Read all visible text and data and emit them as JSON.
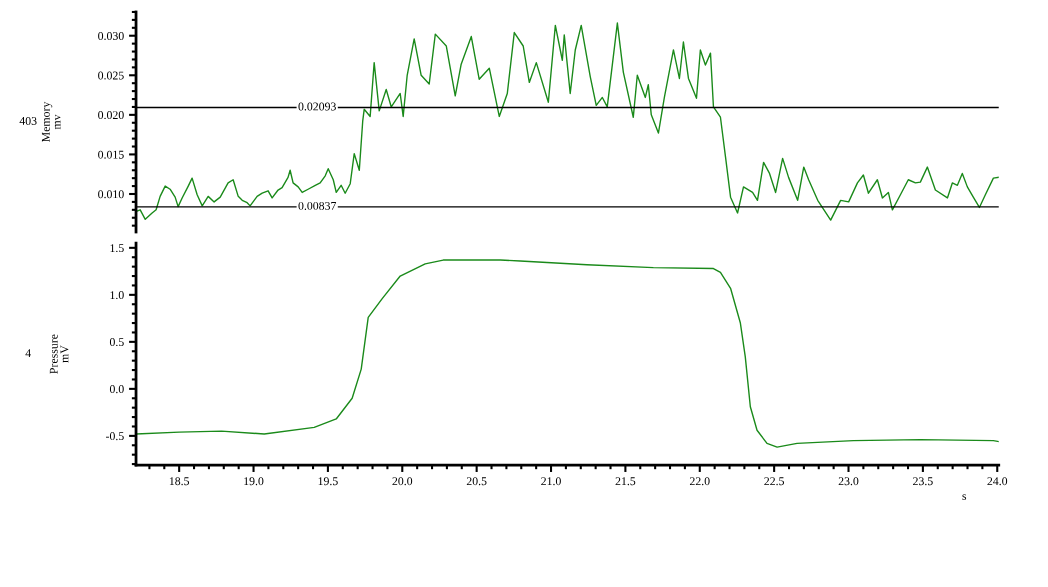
{
  "chart_data": [
    {
      "type": "line",
      "ylabel": "Memory\nmv",
      "annotations": [
        "403"
      ],
      "tick_labels": "y",
      "xlim": [
        18.21,
        24.01
      ],
      "ylim": [
        0.0052,
        0.033
      ],
      "yticks": [
        {
          "value": 0.01,
          "label": "0.010"
        },
        {
          "value": 0.015,
          "label": "0.015"
        },
        {
          "value": 0.02,
          "label": "0.020"
        },
        {
          "value": 0.025,
          "label": "0.025"
        },
        {
          "value": 0.03,
          "label": "0.030"
        }
      ],
      "ref_lines": [
        {
          "axis": "y",
          "value": 0.02093,
          "label": "0.02093"
        },
        {
          "axis": "y",
          "value": 0.00837,
          "label": "0.00837"
        }
      ],
      "series": [
        {
          "color": "#1a8a1a",
          "x": [
            18.211,
            18.238,
            18.272,
            18.318,
            18.345,
            18.372,
            18.406,
            18.439,
            18.473,
            18.493,
            18.52,
            18.561,
            18.587,
            18.621,
            18.655,
            18.695,
            18.735,
            18.776,
            18.829,
            18.863,
            18.897,
            18.924,
            18.957,
            18.977,
            19.024,
            19.058,
            19.098,
            19.125,
            19.165,
            19.192,
            19.232,
            19.246,
            19.266,
            19.3,
            19.327,
            19.367,
            19.415,
            19.448,
            19.482,
            19.502,
            19.536,
            19.556,
            19.589,
            19.616,
            19.65,
            19.677,
            19.711,
            19.734,
            19.744,
            19.784,
            19.811,
            19.845,
            19.892,
            19.926,
            19.986,
            20.006,
            20.033,
            20.08,
            20.127,
            20.181,
            20.222,
            20.296,
            20.356,
            20.396,
            20.464,
            20.517,
            20.585,
            20.652,
            20.706,
            20.753,
            20.813,
            20.854,
            20.901,
            20.982,
            21.029,
            21.076,
            21.089,
            21.129,
            21.163,
            21.203,
            21.264,
            21.304,
            21.345,
            21.378,
            21.446,
            21.486,
            21.553,
            21.58,
            21.634,
            21.654,
            21.674,
            21.722,
            21.762,
            21.823,
            21.863,
            21.89,
            21.924,
            21.978,
            22.004,
            22.038,
            22.072,
            22.092,
            22.139,
            22.173,
            22.207,
            22.254,
            22.294,
            22.355,
            22.388,
            22.429,
            22.469,
            22.51,
            22.557,
            22.597,
            22.658,
            22.699,
            22.732,
            22.793,
            22.88,
            22.947,
            23.001,
            23.06,
            23.1,
            23.134,
            23.194,
            23.228,
            23.268,
            23.295,
            23.349,
            23.402,
            23.45,
            23.483,
            23.53,
            23.584,
            23.665,
            23.698,
            23.732,
            23.765,
            23.799,
            23.839,
            23.88,
            23.92,
            23.974,
            24.008
          ],
          "values": [
            0.0078,
            0.008,
            0.0068,
            0.0076,
            0.008,
            0.0097,
            0.011,
            0.0106,
            0.0096,
            0.0084,
            0.0095,
            0.011,
            0.012,
            0.0099,
            0.0085,
            0.0097,
            0.009,
            0.0096,
            0.0114,
            0.0118,
            0.0097,
            0.0092,
            0.0089,
            0.0085,
            0.0097,
            0.0101,
            0.0104,
            0.0095,
            0.0105,
            0.0108,
            0.0121,
            0.013,
            0.0114,
            0.0109,
            0.0102,
            0.0106,
            0.0111,
            0.0114,
            0.0123,
            0.0132,
            0.0118,
            0.0102,
            0.0111,
            0.0101,
            0.0113,
            0.0151,
            0.013,
            0.0192,
            0.0207,
            0.0198,
            0.0266,
            0.0205,
            0.0232,
            0.021,
            0.0227,
            0.0198,
            0.025,
            0.0296,
            0.025,
            0.0239,
            0.0302,
            0.0287,
            0.0224,
            0.0264,
            0.0299,
            0.0245,
            0.0259,
            0.0198,
            0.0227,
            0.0304,
            0.0287,
            0.0241,
            0.0266,
            0.0216,
            0.0313,
            0.0269,
            0.0301,
            0.0227,
            0.0282,
            0.0313,
            0.0248,
            0.0212,
            0.0222,
            0.021,
            0.0316,
            0.0254,
            0.0197,
            0.025,
            0.0222,
            0.0238,
            0.02,
            0.0177,
            0.0222,
            0.0282,
            0.0246,
            0.0292,
            0.0246,
            0.0221,
            0.0282,
            0.0263,
            0.0278,
            0.021,
            0.0197,
            0.0147,
            0.0096,
            0.0076,
            0.0109,
            0.0102,
            0.0092,
            0.014,
            0.0126,
            0.0102,
            0.0145,
            0.0121,
            0.0092,
            0.0134,
            0.0118,
            0.0092,
            0.0067,
            0.0092,
            0.009,
            0.0114,
            0.0124,
            0.0101,
            0.0118,
            0.0095,
            0.0102,
            0.008,
            0.0099,
            0.0118,
            0.0114,
            0.0115,
            0.0134,
            0.0105,
            0.0095,
            0.0114,
            0.0111,
            0.0126,
            0.0109,
            0.0096,
            0.0083,
            0.0099,
            0.012,
            0.0121
          ]
        }
      ]
    },
    {
      "type": "line",
      "ylabel": "Pressure\nmV",
      "xlabel": "s",
      "annotations": [
        "4"
      ],
      "xlim": [
        18.21,
        24.01
      ],
      "xticks": [
        18.5,
        {
          "value": 19,
          "label": "19.0"
        },
        19.5,
        {
          "value": 20,
          "label": "20.0"
        },
        20.5,
        {
          "value": 21,
          "label": "21.0"
        },
        21.5,
        {
          "value": 22,
          "label": "22.0"
        },
        22.5,
        {
          "value": 23,
          "label": "23.0"
        },
        23.5,
        {
          "value": 24,
          "label": "24.0"
        }
      ],
      "ylim": [
        -0.81,
        1.55
      ],
      "yticks": [
        -0.5,
        {
          "value": 0,
          "label": "0.0"
        },
        0.5,
        {
          "value": 1,
          "label": "1.0"
        },
        1.5
      ],
      "series": [
        {
          "color": "#1a8a1a",
          "x": [
            18.211,
            18.5,
            18.785,
            19.072,
            19.408,
            19.556,
            19.663,
            19.724,
            19.771,
            19.865,
            19.986,
            20.154,
            20.275,
            20.659,
            20.793,
            21.242,
            21.688,
            22.092,
            22.139,
            22.207,
            22.273,
            22.306,
            22.34,
            22.385,
            22.452,
            22.52,
            22.654,
            23.033,
            23.483,
            23.974,
            24.008
          ],
          "values": [
            -0.48,
            -0.46,
            -0.45,
            -0.48,
            -0.41,
            -0.32,
            -0.1,
            0.21,
            0.76,
            0.96,
            1.2,
            1.33,
            1.37,
            1.37,
            1.36,
            1.32,
            1.29,
            1.28,
            1.24,
            1.07,
            0.7,
            0.34,
            -0.19,
            -0.44,
            -0.58,
            -0.62,
            -0.58,
            -0.55,
            -0.54,
            -0.55,
            -0.56
          ]
        }
      ]
    }
  ]
}
